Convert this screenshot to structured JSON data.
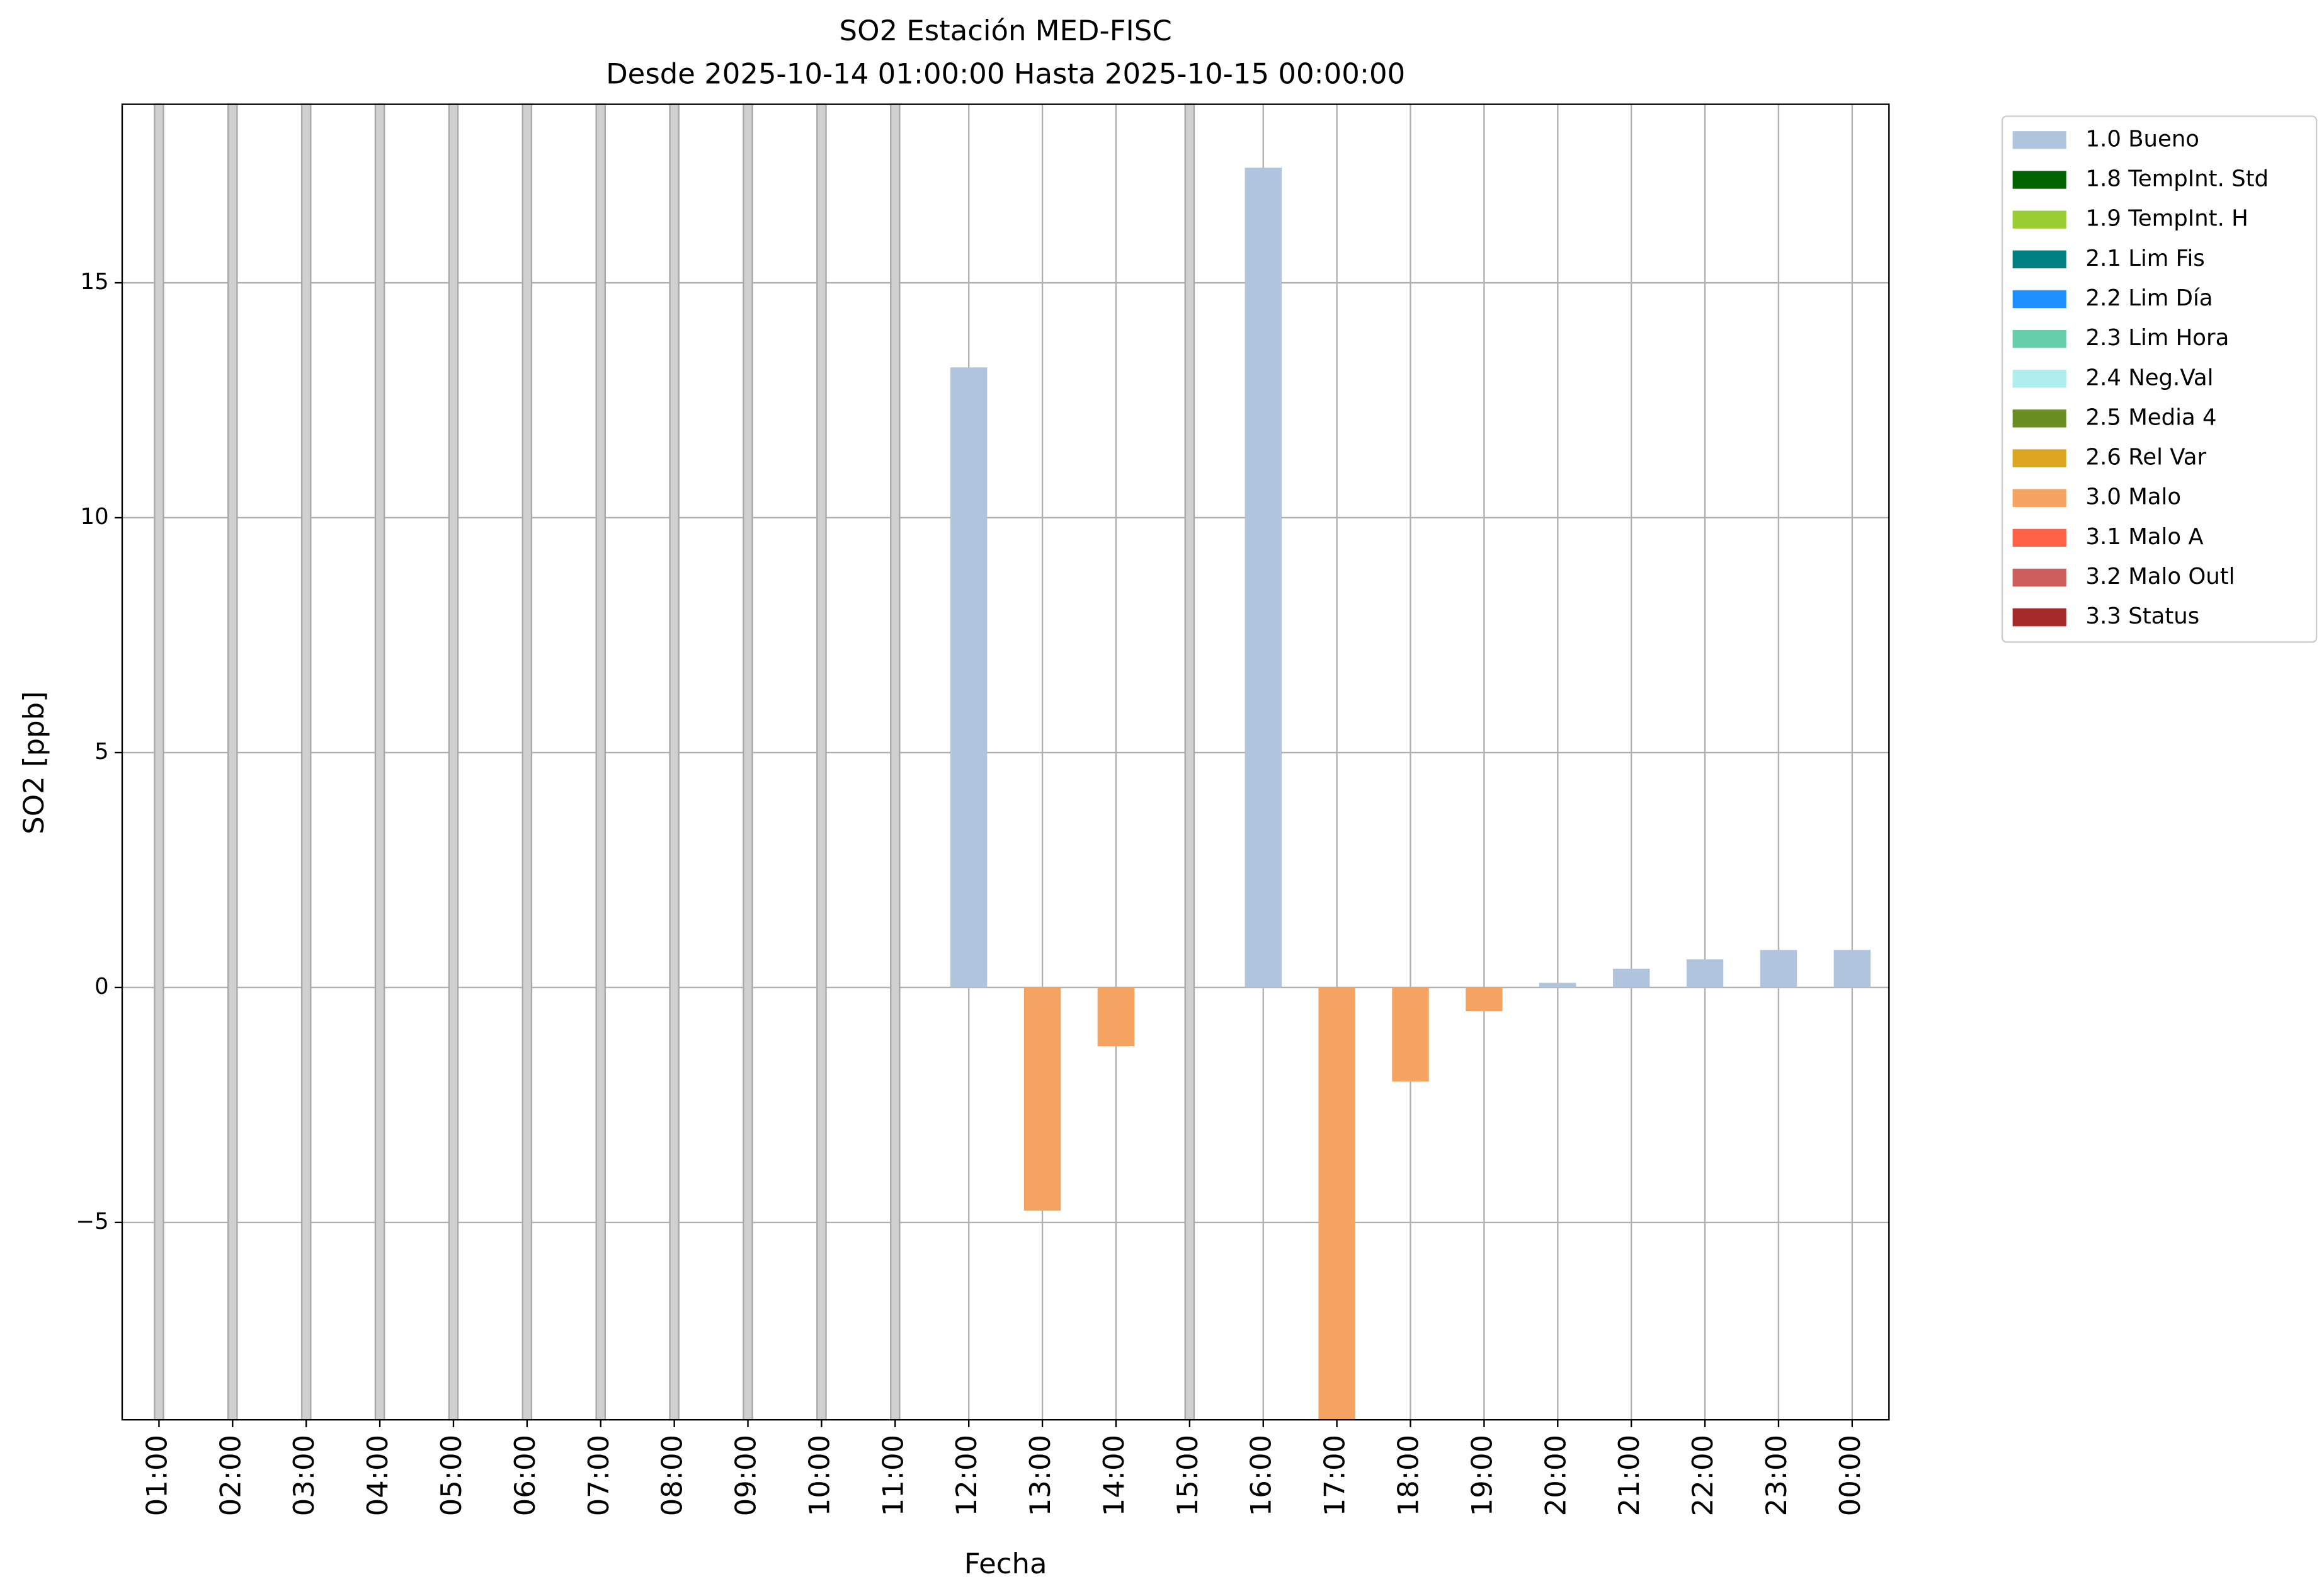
{
  "chart_data": {
    "type": "bar",
    "title": "SO2 Estación MED-FISC",
    "subtitle": "Desde 2025-10-14 01:00:00 Hasta 2025-10-15 00:00:00",
    "x_label": "Fecha",
    "y_label": "SO2 [ppb]",
    "categories": [
      "01:00",
      "02:00",
      "03:00",
      "04:00",
      "05:00",
      "06:00",
      "07:00",
      "08:00",
      "09:00",
      "10:00",
      "11:00",
      "12:00",
      "13:00",
      "14:00",
      "15:00",
      "16:00",
      "17:00",
      "18:00",
      "19:00",
      "20:00",
      "21:00",
      "22:00",
      "23:00",
      "00:00"
    ],
    "ylim": [
      -9.2,
      18.8
    ],
    "yticks": [
      {
        "value": -5,
        "label": "−5"
      },
      0,
      5,
      10,
      15
    ],
    "grid": true,
    "stacked": true,
    "legend": "outside-right",
    "series": [
      {
        "name": "1.0 Bueno",
        "color": "#b0c4de",
        "values": [
          null,
          null,
          null,
          null,
          null,
          null,
          null,
          null,
          null,
          null,
          null,
          13.2,
          null,
          null,
          null,
          17.45,
          null,
          null,
          null,
          0.1,
          0.4,
          0.6,
          0.8,
          0.8
        ]
      },
      {
        "name": "1.8 TempInt. Std",
        "color": "#006400",
        "values": [
          null,
          null,
          null,
          null,
          null,
          null,
          null,
          null,
          null,
          null,
          null,
          null,
          null,
          null,
          null,
          null,
          null,
          null,
          null,
          null,
          null,
          null,
          null,
          null
        ]
      },
      {
        "name": "1.9 TempInt. H",
        "color": "#9acd32",
        "values": [
          null,
          null,
          null,
          null,
          null,
          null,
          null,
          null,
          null,
          null,
          null,
          null,
          null,
          null,
          null,
          null,
          null,
          null,
          null,
          null,
          null,
          null,
          null,
          null
        ]
      },
      {
        "name": "2.1 Lim Fis",
        "color": "#008080",
        "values": [
          null,
          null,
          null,
          null,
          null,
          null,
          null,
          null,
          null,
          null,
          null,
          null,
          null,
          null,
          null,
          null,
          null,
          null,
          null,
          null,
          null,
          null,
          null,
          null
        ]
      },
      {
        "name": "2.2 Lim Día",
        "color": "#1e90ff",
        "values": [
          null,
          null,
          null,
          null,
          null,
          null,
          null,
          null,
          null,
          null,
          null,
          null,
          null,
          null,
          null,
          null,
          null,
          null,
          null,
          null,
          null,
          null,
          null,
          null
        ]
      },
      {
        "name": "2.3 Lim Hora",
        "color": "#66cdaa",
        "values": [
          null,
          null,
          null,
          null,
          null,
          null,
          null,
          null,
          null,
          null,
          null,
          null,
          null,
          null,
          null,
          null,
          null,
          null,
          null,
          null,
          null,
          null,
          null,
          null
        ]
      },
      {
        "name": "2.4 Neg.Val",
        "color": "#afeeee",
        "values": [
          null,
          null,
          null,
          null,
          null,
          null,
          null,
          null,
          null,
          null,
          null,
          null,
          null,
          null,
          null,
          null,
          null,
          null,
          null,
          null,
          null,
          null,
          null,
          null
        ]
      },
      {
        "name": "2.5 Media 4",
        "color": "#6b8e23",
        "values": [
          null,
          null,
          null,
          null,
          null,
          null,
          null,
          null,
          null,
          null,
          null,
          null,
          null,
          null,
          null,
          null,
          null,
          null,
          null,
          null,
          null,
          null,
          null,
          null
        ]
      },
      {
        "name": "2.6 Rel Var",
        "color": "#daa520",
        "values": [
          null,
          null,
          null,
          null,
          null,
          null,
          null,
          null,
          null,
          null,
          null,
          null,
          null,
          null,
          null,
          null,
          null,
          null,
          null,
          null,
          null,
          null,
          null,
          null
        ]
      },
      {
        "name": "3.0 Malo",
        "color": "#f4a460",
        "values": [
          null,
          null,
          null,
          null,
          null,
          null,
          null,
          null,
          null,
          null,
          null,
          null,
          -4.75,
          -1.25,
          null,
          null,
          -9.5,
          -2.0,
          -0.5,
          null,
          null,
          null,
          null,
          null
        ]
      },
      {
        "name": "3.1 Malo A",
        "color": "#ff6347",
        "values": [
          null,
          null,
          null,
          null,
          null,
          null,
          null,
          null,
          null,
          null,
          null,
          null,
          null,
          null,
          null,
          null,
          null,
          null,
          null,
          null,
          null,
          null,
          null,
          null
        ]
      },
      {
        "name": "3.2 Malo Outl",
        "color": "#cd5c5c",
        "values": [
          null,
          null,
          null,
          null,
          null,
          null,
          null,
          null,
          null,
          null,
          null,
          null,
          null,
          null,
          null,
          null,
          null,
          null,
          null,
          null,
          null,
          null,
          null,
          null
        ]
      },
      {
        "name": "3.3 Status",
        "color": "#a52a2a",
        "values": [
          null,
          null,
          null,
          null,
          null,
          null,
          null,
          null,
          null,
          null,
          null,
          null,
          null,
          null,
          null,
          null,
          null,
          null,
          null,
          null,
          null,
          null,
          null,
          null
        ]
      }
    ]
  }
}
